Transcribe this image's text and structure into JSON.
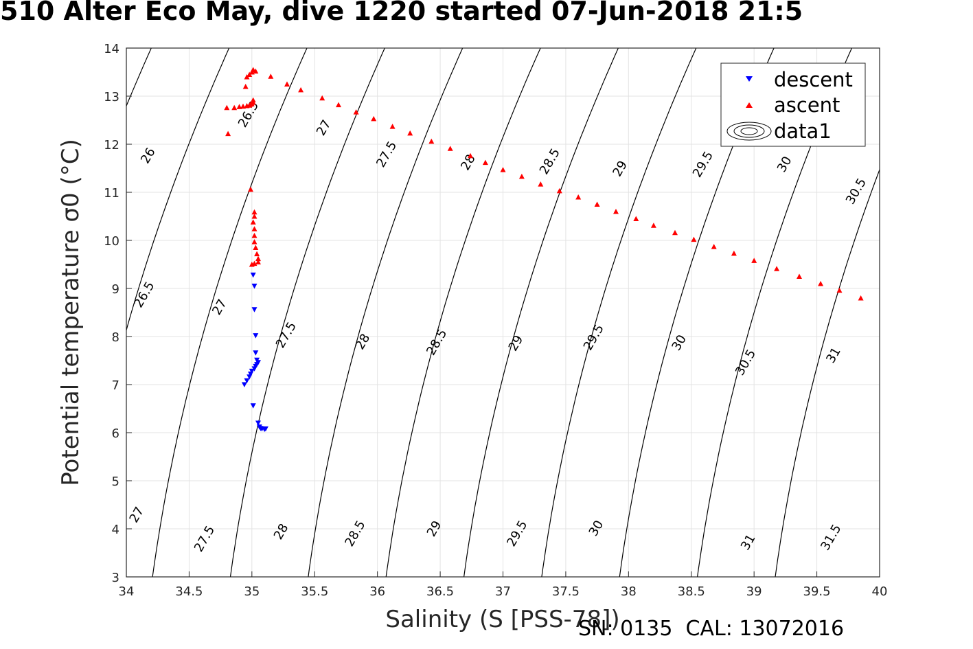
{
  "header": {
    "title": "510 Alter Eco May, dive 1220 started 07-Jun-2018 21:5"
  },
  "footer": {
    "text": "SN: 0135  CAL: 13072016"
  },
  "chart_data": {
    "type": "scatter",
    "title": "510 Alter Eco May, dive 1220 started 07-Jun-2018 21:5",
    "xlabel": "Salinity (S [PSS-78])",
    "ylabel": "Potential temperature σ0 (°C)",
    "xlim": [
      34,
      40
    ],
    "ylim": [
      3,
      14
    ],
    "xticks": [
      34,
      34.5,
      35,
      35.5,
      36,
      36.5,
      37,
      37.5,
      38,
      38.5,
      39,
      39.5,
      40
    ],
    "yticks": [
      3,
      4,
      5,
      6,
      7,
      8,
      9,
      10,
      11,
      12,
      13,
      14
    ],
    "grid": true,
    "legend_position": "top-right",
    "legend": [
      "descent",
      "ascent",
      "data1"
    ],
    "series": [
      {
        "name": "descent",
        "marker": "triangle-down",
        "color": "#0000ff",
        "points": [
          [
            35.11,
            6.08
          ],
          [
            35.1,
            6.07
          ],
          [
            35.08,
            6.08
          ],
          [
            35.07,
            6.09
          ],
          [
            35.06,
            6.12
          ],
          [
            35.05,
            6.2
          ],
          [
            35.01,
            6.56
          ],
          [
            34.94,
            7.0
          ],
          [
            34.96,
            7.08
          ],
          [
            34.98,
            7.16
          ],
          [
            34.99,
            7.22
          ],
          [
            35.0,
            7.28
          ],
          [
            35.02,
            7.33
          ],
          [
            35.03,
            7.38
          ],
          [
            35.04,
            7.42
          ],
          [
            35.05,
            7.46
          ],
          [
            35.04,
            7.51
          ],
          [
            35.03,
            7.66
          ],
          [
            35.03,
            8.02
          ],
          [
            35.02,
            8.56
          ],
          [
            35.02,
            9.05
          ],
          [
            35.01,
            9.28
          ]
        ]
      },
      {
        "name": "ascent",
        "marker": "triangle-up",
        "color": "#ff0000",
        "points": [
          [
            35.05,
            9.55
          ],
          [
            35.05,
            9.62
          ],
          [
            35.04,
            9.72
          ],
          [
            35.03,
            9.85
          ],
          [
            35.02,
            9.97
          ],
          [
            35.02,
            10.1
          ],
          [
            35.02,
            10.24
          ],
          [
            35.01,
            10.38
          ],
          [
            35.02,
            10.5
          ],
          [
            35.02,
            10.59
          ],
          [
            34.99,
            11.06
          ],
          [
            35.0,
            9.5
          ],
          [
            35.02,
            9.52
          ],
          [
            34.81,
            12.22
          ],
          [
            34.8,
            12.76
          ],
          [
            34.86,
            12.76
          ],
          [
            34.9,
            12.78
          ],
          [
            34.93,
            12.79
          ],
          [
            34.96,
            12.8
          ],
          [
            34.98,
            12.81
          ],
          [
            34.99,
            12.83
          ],
          [
            35.0,
            12.84
          ],
          [
            35.01,
            12.87
          ],
          [
            35.01,
            12.92
          ],
          [
            34.95,
            13.2
          ],
          [
            34.96,
            13.4
          ],
          [
            34.98,
            13.45
          ],
          [
            35.0,
            13.5
          ],
          [
            35.01,
            13.55
          ],
          [
            35.03,
            13.52
          ],
          [
            35.15,
            13.41
          ],
          [
            35.28,
            13.25
          ],
          [
            35.39,
            13.13
          ],
          [
            35.56,
            12.96
          ],
          [
            35.69,
            12.82
          ],
          [
            35.83,
            12.67
          ],
          [
            35.97,
            12.53
          ],
          [
            36.12,
            12.37
          ],
          [
            36.26,
            12.23
          ],
          [
            36.43,
            12.06
          ],
          [
            36.58,
            11.91
          ],
          [
            36.74,
            11.76
          ],
          [
            36.86,
            11.62
          ],
          [
            37.0,
            11.47
          ],
          [
            37.15,
            11.33
          ],
          [
            37.3,
            11.17
          ],
          [
            37.45,
            11.03
          ],
          [
            37.6,
            10.9
          ],
          [
            37.75,
            10.75
          ],
          [
            37.9,
            10.6
          ],
          [
            38.06,
            10.45
          ],
          [
            38.2,
            10.31
          ],
          [
            38.37,
            10.16
          ],
          [
            38.52,
            10.02
          ],
          [
            38.68,
            9.87
          ],
          [
            38.84,
            9.73
          ],
          [
            39.0,
            9.58
          ],
          [
            39.18,
            9.41
          ],
          [
            39.36,
            9.25
          ],
          [
            39.53,
            9.1
          ],
          [
            39.68,
            8.96
          ],
          [
            39.85,
            8.8
          ]
        ]
      }
    ],
    "contours": {
      "variable": "sigma0",
      "color": "#000000",
      "levels": [
        26,
        26.5,
        27,
        27.5,
        28,
        28.5,
        29,
        29.5,
        30,
        30.5,
        31,
        31.5
      ],
      "labels": [
        {
          "text": "26",
          "x": 34.2,
          "y": 11.72
        },
        {
          "text": "26.5",
          "x": 35.0,
          "y": 12.58
        },
        {
          "text": "27",
          "x": 35.6,
          "y": 12.3
        },
        {
          "text": "27.5",
          "x": 36.1,
          "y": 11.75
        },
        {
          "text": "28",
          "x": 36.75,
          "y": 11.58
        },
        {
          "text": "28.5",
          "x": 37.4,
          "y": 11.6
        },
        {
          "text": "29",
          "x": 37.96,
          "y": 11.45
        },
        {
          "text": "29.5",
          "x": 38.62,
          "y": 11.54
        },
        {
          "text": "30",
          "x": 39.27,
          "y": 11.54
        },
        {
          "text": "30.5",
          "x": 39.84,
          "y": 10.98
        },
        {
          "text": "26.5",
          "x": 34.17,
          "y": 8.83
        },
        {
          "text": "27",
          "x": 34.77,
          "y": 8.57
        },
        {
          "text": "27.5",
          "x": 35.3,
          "y": 7.99
        },
        {
          "text": "28",
          "x": 35.91,
          "y": 7.85
        },
        {
          "text": "28.5",
          "x": 36.5,
          "y": 7.84
        },
        {
          "text": "29",
          "x": 37.13,
          "y": 7.82
        },
        {
          "text": "29.5",
          "x": 37.75,
          "y": 7.94
        },
        {
          "text": "30",
          "x": 38.43,
          "y": 7.83
        },
        {
          "text": "30.5",
          "x": 38.96,
          "y": 7.42
        },
        {
          "text": "31",
          "x": 39.66,
          "y": 7.57
        },
        {
          "text": "27",
          "x": 34.11,
          "y": 4.25
        },
        {
          "text": "27.5",
          "x": 34.65,
          "y": 3.75
        },
        {
          "text": "28",
          "x": 35.26,
          "y": 3.9
        },
        {
          "text": "28.5",
          "x": 35.85,
          "y": 3.86
        },
        {
          "text": "29",
          "x": 36.48,
          "y": 3.96
        },
        {
          "text": "29.5",
          "x": 37.14,
          "y": 3.86
        },
        {
          "text": "30",
          "x": 37.77,
          "y": 3.97
        },
        {
          "text": "31",
          "x": 38.98,
          "y": 3.68
        },
        {
          "text": "31.5",
          "x": 39.64,
          "y": 3.78
        }
      ]
    }
  }
}
